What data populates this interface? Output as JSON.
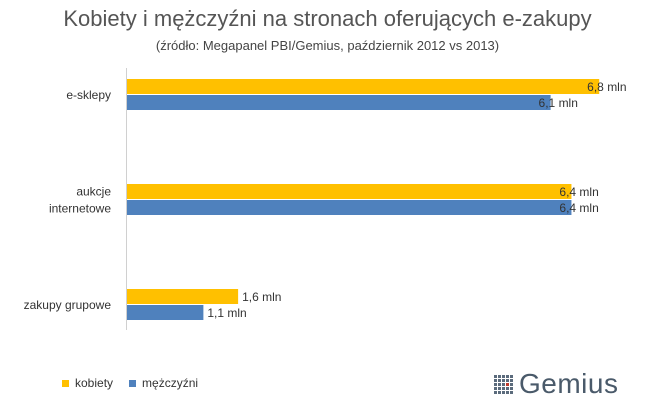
{
  "chart_data": {
    "type": "bar",
    "orientation": "horizontal",
    "title": "Kobiety i mężczyźni na stronach oferujących e-zakupy",
    "subtitle": "(źródło: Megapanel PBI/Gemius, październik 2012 vs 2013)",
    "categories": [
      [
        "e-sklepy"
      ],
      [
        "aukcje",
        "internetowe"
      ],
      [
        "zakupy grupowe"
      ]
    ],
    "series": [
      {
        "name": "kobiety",
        "color": "#ffc000",
        "values": [
          6.8,
          6.4,
          1.6
        ],
        "labels": [
          "6,8 mln",
          "6,4 mln",
          "1,6 mln"
        ]
      },
      {
        "name": "mężczyźni",
        "color": "#4f81bd",
        "values": [
          6.1,
          6.4,
          1.1
        ],
        "labels": [
          "6,1 mln",
          "6,4 mln",
          "1,1 mln"
        ]
      }
    ],
    "xlim": [
      0,
      7.2
    ],
    "grid": false,
    "legend": "bottom-left",
    "unit": "mln"
  },
  "logo": {
    "text": "Gemius",
    "icon": "gemius-grid-logo-icon"
  }
}
